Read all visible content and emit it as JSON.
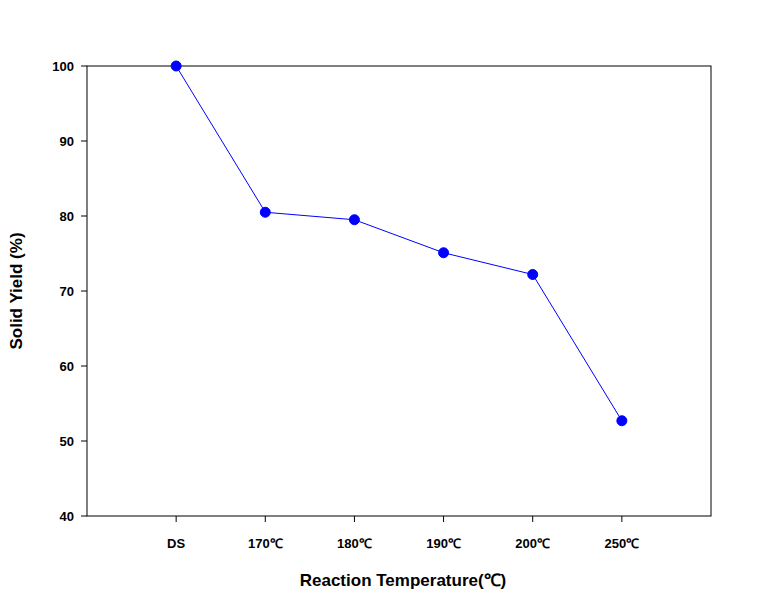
{
  "chart_data": {
    "type": "line",
    "x_label": "Reaction Temperature(℃)",
    "y_label": "Solid Yield (%)",
    "categories": [
      "DS",
      "170℃",
      "180℃",
      "190℃",
      "200℃",
      "250℃"
    ],
    "values": [
      100,
      80.5,
      79.5,
      75.1,
      72.2,
      52.7
    ],
    "color": "#0000ff",
    "marker": "circle",
    "line_style": "solid",
    "grid": false,
    "ylim": [
      40,
      100
    ],
    "yticks": [
      40,
      50,
      60,
      70,
      80,
      90,
      100
    ]
  }
}
